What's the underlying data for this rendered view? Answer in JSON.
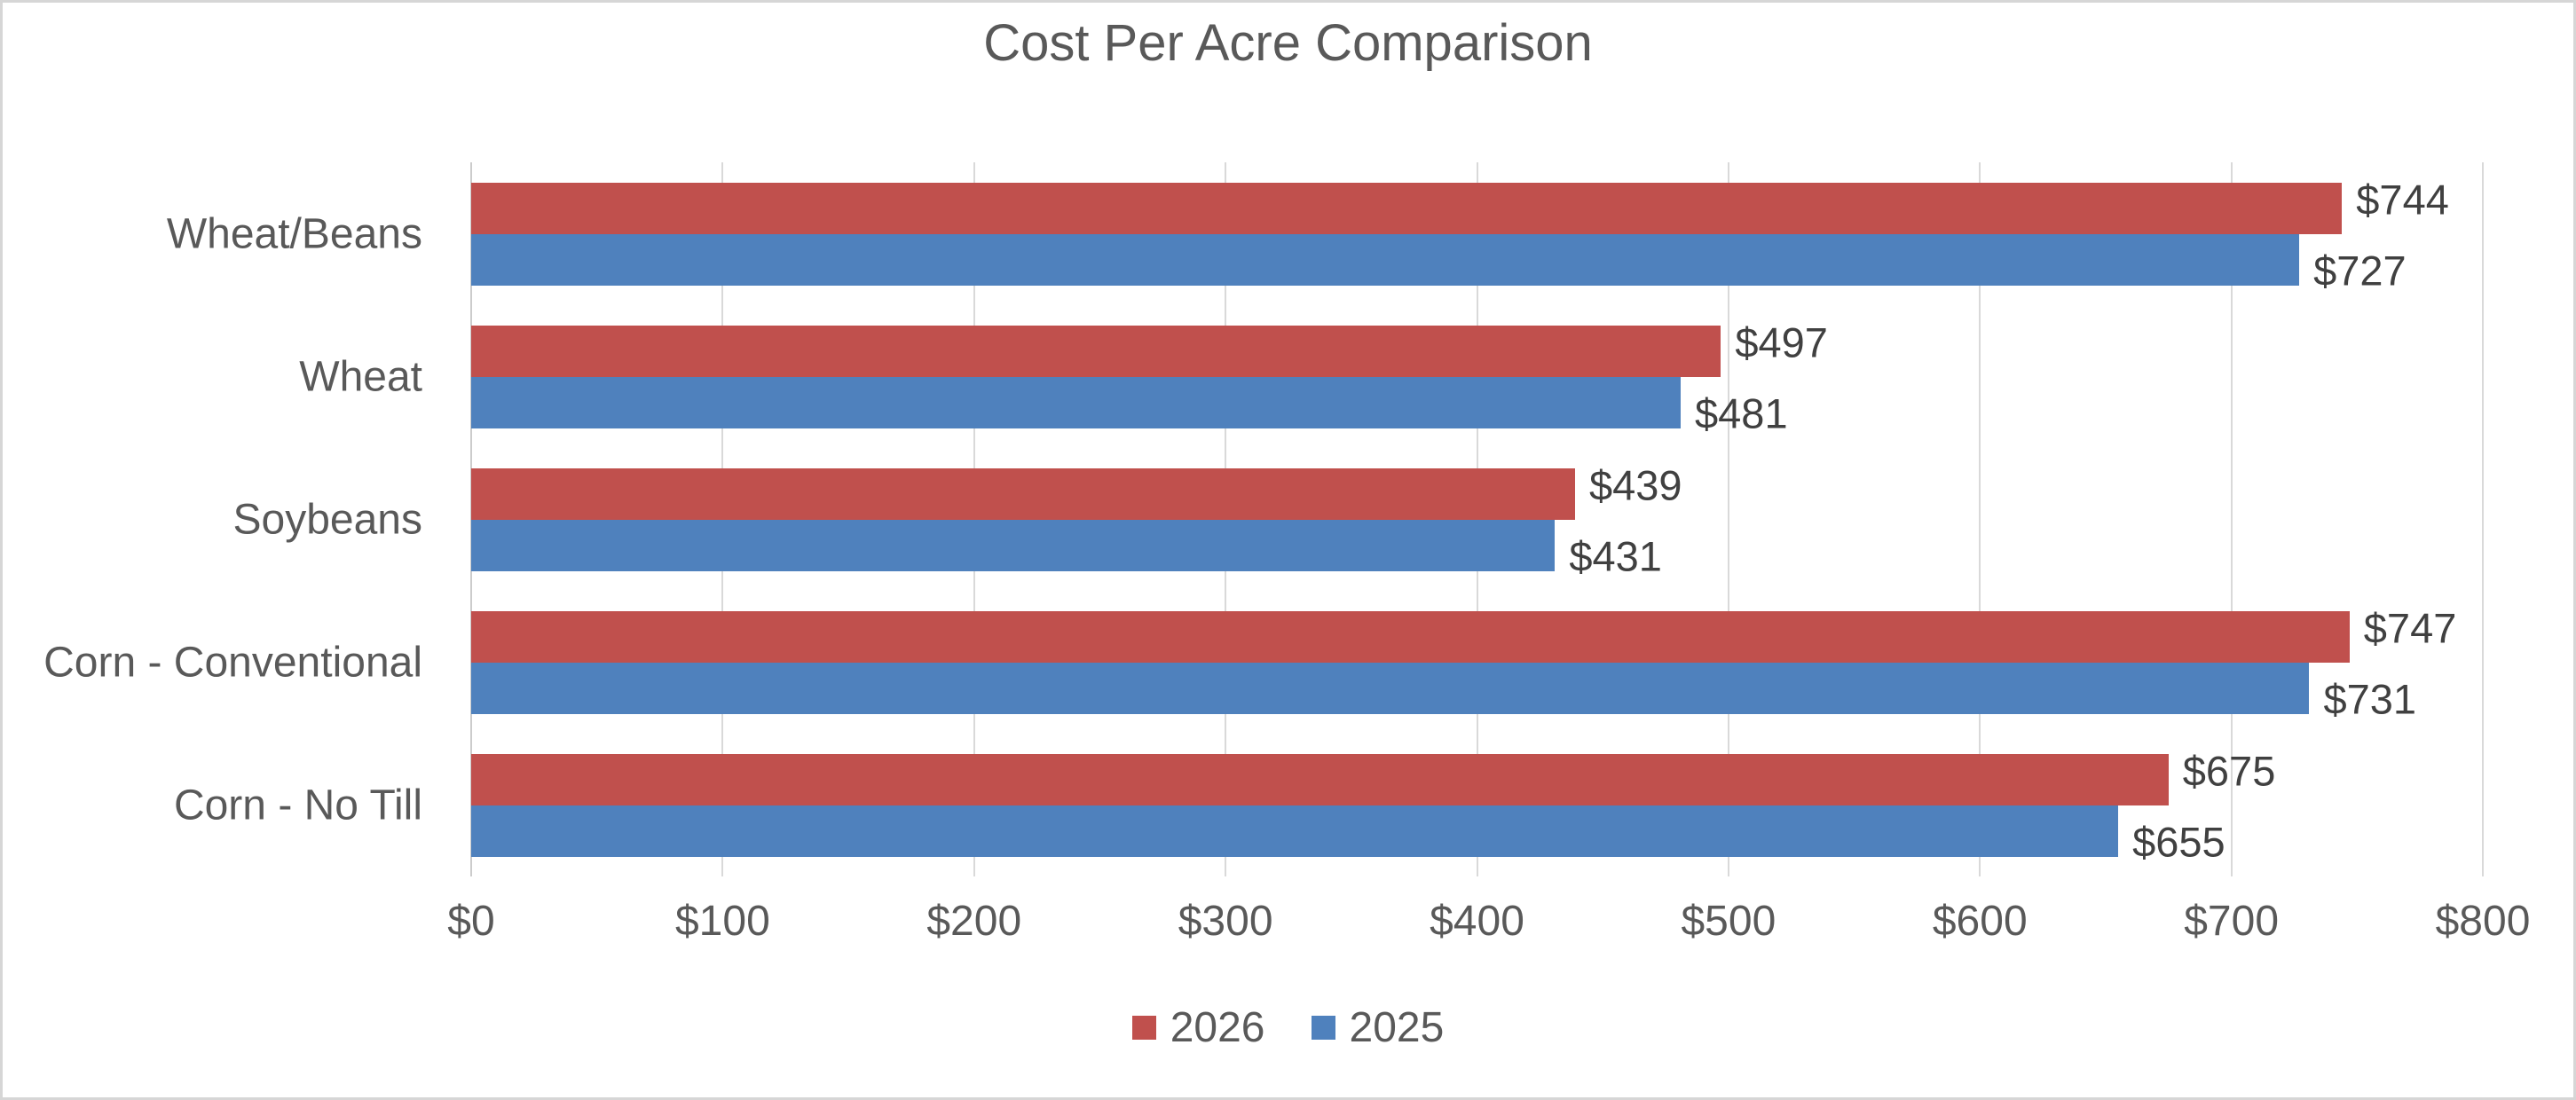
{
  "chart_data": {
    "type": "bar",
    "orientation": "horizontal",
    "title": "Cost Per Acre Comparison",
    "categories": [
      "Wheat/Beans",
      "Wheat",
      "Soybeans",
      "Corn - Conventional",
      "Corn - No Till"
    ],
    "series": [
      {
        "name": "2026",
        "color": "#C0504D",
        "values": [
          744,
          497,
          439,
          747,
          675
        ],
        "labels": [
          "$744",
          "$497",
          "$439",
          "$747",
          "$675"
        ]
      },
      {
        "name": "2025",
        "color": "#4F81BD",
        "values": [
          727,
          481,
          431,
          731,
          655
        ],
        "labels": [
          "$727",
          "$481",
          "$431",
          "$731",
          "$655"
        ]
      }
    ],
    "xlim": [
      0,
      800
    ],
    "x_ticks": [
      0,
      100,
      200,
      300,
      400,
      500,
      600,
      700,
      800
    ],
    "x_tick_labels": [
      "$0",
      "$100",
      "$200",
      "$300",
      "$400",
      "$500",
      "$600",
      "$700",
      "$800"
    ],
    "grid": true,
    "legend_position": "bottom-center",
    "colors": {
      "title_text": "#595959",
      "axis_text": "#595959",
      "data_label_text": "#404040",
      "gridline": "#D9D9D9",
      "chart_border": "#D6D6D6",
      "background": "#FFFFFF"
    }
  }
}
